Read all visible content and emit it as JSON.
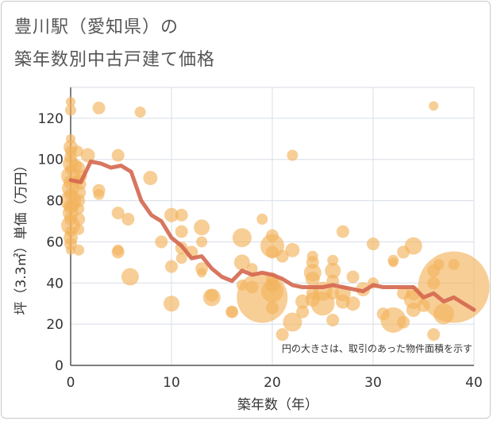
{
  "header": {
    "title_line1": "豊川駅（愛知県）の",
    "title_line2": "築年数別中古戸建て価格"
  },
  "chart_data": {
    "type": "scatter",
    "title": "豊川駅（愛知県）の 築年数別中古戸建て価格",
    "xlabel": "築年数（年）",
    "ylabel": "坪（3.3㎡）単価（万円）",
    "xlim": [
      0,
      40
    ],
    "ylim": [
      0,
      135
    ],
    "x_ticks": [
      "0",
      "10",
      "20",
      "30",
      "40"
    ],
    "y_ticks": [
      "0",
      "20",
      "40",
      "60",
      "80",
      "100",
      "120"
    ],
    "x_tick_values": [
      0,
      10,
      20,
      30,
      40
    ],
    "y_tick_values": [
      0,
      20,
      40,
      60,
      80,
      100,
      120
    ],
    "grid": true,
    "annotation": "円の大きさは、取引のあった物件面積を示す",
    "colors": {
      "bubble": "#f2b35e",
      "line": "#d4674f",
      "grid": "#d8dde6"
    },
    "bubbles": [
      {
        "x": 0,
        "y": 128,
        "s": 6
      },
      {
        "x": 0,
        "y": 124,
        "s": 7
      },
      {
        "x": 0,
        "y": 110,
        "s": 6
      },
      {
        "x": 0,
        "y": 106,
        "s": 9
      },
      {
        "x": 0,
        "y": 104,
        "s": 7
      },
      {
        "x": 0,
        "y": 101,
        "s": 8
      },
      {
        "x": 0,
        "y": 98,
        "s": 10
      },
      {
        "x": 0,
        "y": 95,
        "s": 7
      },
      {
        "x": 0,
        "y": 92,
        "s": 12
      },
      {
        "x": 0,
        "y": 89,
        "s": 9
      },
      {
        "x": 0,
        "y": 86,
        "s": 11
      },
      {
        "x": 0,
        "y": 83,
        "s": 8
      },
      {
        "x": 0,
        "y": 80,
        "s": 13
      },
      {
        "x": 0,
        "y": 77,
        "s": 9
      },
      {
        "x": 0,
        "y": 74,
        "s": 10
      },
      {
        "x": 0,
        "y": 71,
        "s": 8
      },
      {
        "x": 0,
        "y": 68,
        "s": 12
      },
      {
        "x": 0,
        "y": 65,
        "s": 7
      },
      {
        "x": 0,
        "y": 62,
        "s": 9
      },
      {
        "x": 0,
        "y": 59,
        "s": 8
      },
      {
        "x": 0,
        "y": 56,
        "s": 6
      },
      {
        "x": 0.2,
        "y": 78,
        "s": 9
      },
      {
        "x": 0.5,
        "y": 97,
        "s": 8
      },
      {
        "x": 0.7,
        "y": 104,
        "s": 7
      },
      {
        "x": 0.8,
        "y": 96,
        "s": 8
      },
      {
        "x": 0.8,
        "y": 90,
        "s": 7
      },
      {
        "x": 0.8,
        "y": 84,
        "s": 9
      },
      {
        "x": 0.8,
        "y": 80,
        "s": 8
      },
      {
        "x": 0.8,
        "y": 76,
        "s": 7
      },
      {
        "x": 0.8,
        "y": 71,
        "s": 8
      },
      {
        "x": 0.8,
        "y": 66,
        "s": 7
      },
      {
        "x": 0.8,
        "y": 56,
        "s": 7
      },
      {
        "x": 1,
        "y": 92,
        "s": 8
      },
      {
        "x": 1,
        "y": 88,
        "s": 7
      },
      {
        "x": 1.7,
        "y": 102,
        "s": 9
      },
      {
        "x": 2.8,
        "y": 125,
        "s": 8
      },
      {
        "x": 2.8,
        "y": 85,
        "s": 8
      },
      {
        "x": 2.8,
        "y": 83,
        "s": 7
      },
      {
        "x": 4.7,
        "y": 102,
        "s": 8
      },
      {
        "x": 4.7,
        "y": 74,
        "s": 8
      },
      {
        "x": 4.7,
        "y": 56,
        "s": 7
      },
      {
        "x": 4.7,
        "y": 55,
        "s": 8
      },
      {
        "x": 5.7,
        "y": 71,
        "s": 8
      },
      {
        "x": 5.9,
        "y": 43,
        "s": 11
      },
      {
        "x": 6.9,
        "y": 123,
        "s": 7
      },
      {
        "x": 7.9,
        "y": 91,
        "s": 9
      },
      {
        "x": 9,
        "y": 60,
        "s": 8
      },
      {
        "x": 10,
        "y": 73,
        "s": 9
      },
      {
        "x": 10,
        "y": 48,
        "s": 8
      },
      {
        "x": 10,
        "y": 30,
        "s": 10
      },
      {
        "x": 11,
        "y": 73,
        "s": 8
      },
      {
        "x": 11,
        "y": 65,
        "s": 8
      },
      {
        "x": 11,
        "y": 57,
        "s": 8
      },
      {
        "x": 11,
        "y": 52,
        "s": 7
      },
      {
        "x": 12,
        "y": 55,
        "s": 8
      },
      {
        "x": 13,
        "y": 67,
        "s": 10
      },
      {
        "x": 13,
        "y": 60,
        "s": 7
      },
      {
        "x": 13,
        "y": 47,
        "s": 8
      },
      {
        "x": 13,
        "y": 45,
        "s": 6
      },
      {
        "x": 14,
        "y": 34,
        "s": 8
      },
      {
        "x": 14,
        "y": 33,
        "s": 11
      },
      {
        "x": 16,
        "y": 26,
        "s": 8
      },
      {
        "x": 16,
        "y": 26,
        "s": 7
      },
      {
        "x": 17,
        "y": 62,
        "s": 12
      },
      {
        "x": 17,
        "y": 50,
        "s": 10
      },
      {
        "x": 17,
        "y": 39,
        "s": 7
      },
      {
        "x": 18,
        "y": 47,
        "s": 7
      },
      {
        "x": 18,
        "y": 38,
        "s": 8
      },
      {
        "x": 19,
        "y": 71,
        "s": 7
      },
      {
        "x": 19,
        "y": 33,
        "s": 32
      },
      {
        "x": 20,
        "y": 63,
        "s": 8
      },
      {
        "x": 20,
        "y": 58,
        "s": 15
      },
      {
        "x": 20,
        "y": 55,
        "s": 8
      },
      {
        "x": 20,
        "y": 42,
        "s": 8
      },
      {
        "x": 20,
        "y": 39,
        "s": 9
      },
      {
        "x": 20,
        "y": 36,
        "s": 14
      },
      {
        "x": 20,
        "y": 28,
        "s": 8
      },
      {
        "x": 21,
        "y": 53,
        "s": 8
      },
      {
        "x": 21,
        "y": 15,
        "s": 8
      },
      {
        "x": 22,
        "y": 102,
        "s": 7
      },
      {
        "x": 22,
        "y": 56,
        "s": 9
      },
      {
        "x": 22,
        "y": 21,
        "s": 12
      },
      {
        "x": 23,
        "y": 31,
        "s": 9
      },
      {
        "x": 23,
        "y": 26,
        "s": 8
      },
      {
        "x": 24,
        "y": 53,
        "s": 7
      },
      {
        "x": 24,
        "y": 50,
        "s": 8
      },
      {
        "x": 24,
        "y": 45,
        "s": 11
      },
      {
        "x": 24,
        "y": 42,
        "s": 9
      },
      {
        "x": 24,
        "y": 35,
        "s": 8
      },
      {
        "x": 24,
        "y": 32,
        "s": 9
      },
      {
        "x": 25,
        "y": 36,
        "s": 12
      },
      {
        "x": 25,
        "y": 30,
        "s": 15
      },
      {
        "x": 26,
        "y": 51,
        "s": 7
      },
      {
        "x": 26,
        "y": 46,
        "s": 10
      },
      {
        "x": 26,
        "y": 41,
        "s": 8
      },
      {
        "x": 26,
        "y": 35,
        "s": 8
      },
      {
        "x": 26,
        "y": 22,
        "s": 8
      },
      {
        "x": 27,
        "y": 65,
        "s": 8
      },
      {
        "x": 27,
        "y": 35,
        "s": 10
      },
      {
        "x": 27,
        "y": 31,
        "s": 9
      },
      {
        "x": 28,
        "y": 43,
        "s": 8
      },
      {
        "x": 28,
        "y": 30,
        "s": 9
      },
      {
        "x": 29,
        "y": 37,
        "s": 9
      },
      {
        "x": 30,
        "y": 59,
        "s": 8
      },
      {
        "x": 30,
        "y": 40,
        "s": 7
      },
      {
        "x": 31,
        "y": 25,
        "s": 8
      },
      {
        "x": 32,
        "y": 51,
        "s": 7
      },
      {
        "x": 32,
        "y": 50,
        "s": 6
      },
      {
        "x": 32,
        "y": 22,
        "s": 16
      },
      {
        "x": 33,
        "y": 55,
        "s": 8
      },
      {
        "x": 33,
        "y": 35,
        "s": 8
      },
      {
        "x": 33,
        "y": 21,
        "s": 8
      },
      {
        "x": 34,
        "y": 58,
        "s": 11
      },
      {
        "x": 34,
        "y": 35,
        "s": 9
      },
      {
        "x": 34,
        "y": 32,
        "s": 12
      },
      {
        "x": 34,
        "y": 27,
        "s": 9
      },
      {
        "x": 35,
        "y": 29,
        "s": 8
      },
      {
        "x": 36,
        "y": 126,
        "s": 6
      },
      {
        "x": 36,
        "y": 46,
        "s": 8
      },
      {
        "x": 36,
        "y": 40,
        "s": 8
      },
      {
        "x": 36,
        "y": 15,
        "s": 8
      },
      {
        "x": 36.5,
        "y": 49,
        "s": 7
      },
      {
        "x": 37,
        "y": 25,
        "s": 13
      },
      {
        "x": 38,
        "y": 38,
        "s": 45
      },
      {
        "x": 38,
        "y": 49,
        "s": 7
      }
    ],
    "line": {
      "x": [
        0,
        1,
        2,
        3,
        4,
        5,
        6,
        7,
        8,
        9,
        10,
        11,
        12,
        13,
        14,
        15,
        16,
        17,
        18,
        19,
        20,
        21,
        22,
        23,
        24,
        25,
        26,
        27,
        28,
        29,
        30,
        31,
        32,
        33,
        34,
        35,
        36,
        37,
        38,
        39,
        40
      ],
      "y": [
        90,
        89,
        99,
        98,
        96,
        97,
        94,
        80,
        73,
        70,
        62,
        58,
        52,
        53,
        47,
        43,
        41,
        46,
        44,
        45,
        44,
        42,
        39,
        38,
        38,
        38,
        39,
        38,
        37,
        36,
        39,
        38,
        38,
        38,
        38,
        33,
        35,
        31,
        33,
        30,
        27
      ]
    }
  }
}
